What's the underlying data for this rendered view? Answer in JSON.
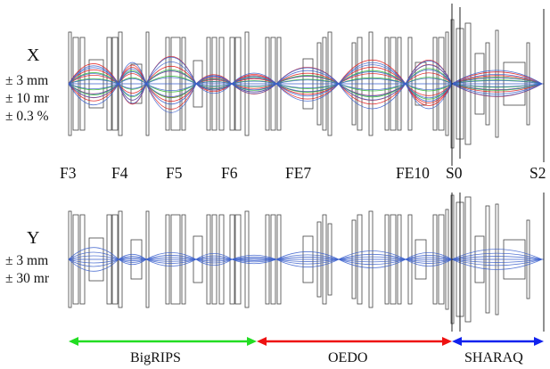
{
  "x_plane": {
    "label": "X",
    "acceptance": [
      "± 3 mm",
      "± 10 mr",
      "± 0.3 %"
    ]
  },
  "y_plane": {
    "label": "Y",
    "acceptance": [
      "± 3 mm",
      "± 30 mr"
    ]
  },
  "focal_planes": [
    "F3",
    "F4",
    "F5",
    "F6",
    "FE7",
    "FE10",
    "S0",
    "S2"
  ],
  "sections": [
    {
      "name": "BigRIPS",
      "color": "#22dd22"
    },
    {
      "name": "OEDO",
      "color": "#ee1111"
    },
    {
      "name": "SHARAQ",
      "color": "#1122ee"
    }
  ],
  "colors": {
    "ray_blue": "#3a5fcd",
    "ray_red": "#e01818",
    "ray_green": "#2fb82f",
    "element_outline": "#444444"
  }
}
